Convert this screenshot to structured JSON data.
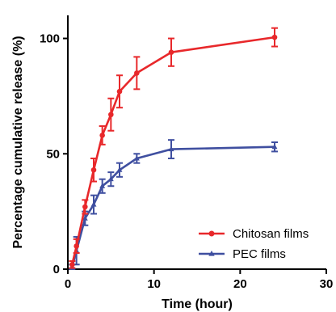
{
  "chart_data": {
    "type": "line",
    "title": "",
    "xlabel": "Time (hour)",
    "ylabel": "Percentage cumulative release (%)",
    "xlim": [
      0,
      30
    ],
    "ylim": [
      0,
      110
    ],
    "xticks": [
      0,
      10,
      20,
      30
    ],
    "yticks": [
      0,
      50,
      100
    ],
    "grid": false,
    "legend_position": "bottom-right",
    "series": [
      {
        "name": "Chitosan films",
        "color": "#e8282b",
        "marker": "circle",
        "x": [
          0.5,
          1,
          2,
          3,
          4,
          5,
          6,
          8,
          12,
          24
        ],
        "y": [
          2,
          10,
          27,
          43,
          58,
          67,
          77,
          85,
          94,
          100.5
        ],
        "err": [
          1.5,
          3,
          3,
          5,
          4,
          7,
          7,
          7,
          6,
          4
        ]
      },
      {
        "name": "PEC films",
        "color": "#3f4fa0",
        "marker": "triangle",
        "x": [
          0.5,
          1,
          2,
          3,
          4,
          5,
          6,
          8,
          12,
          24
        ],
        "y": [
          1,
          8,
          22,
          28,
          36,
          39,
          43,
          48,
          52,
          53
        ],
        "err": [
          1,
          6,
          3,
          4,
          3,
          3,
          3,
          2,
          4,
          2
        ]
      }
    ]
  }
}
